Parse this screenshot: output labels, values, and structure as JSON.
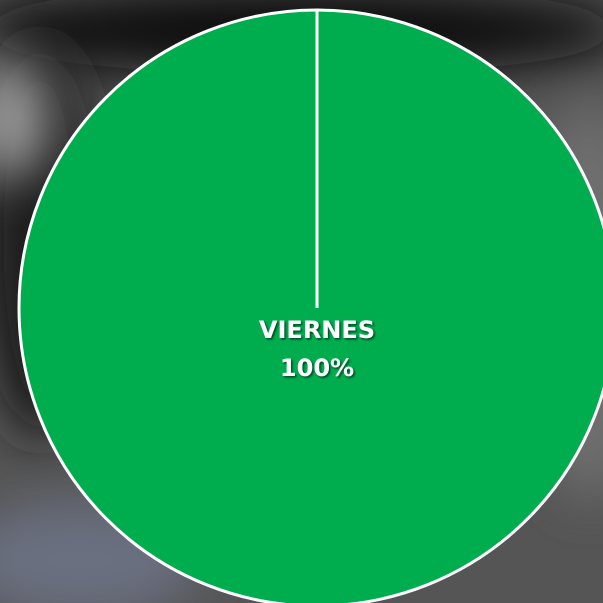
{
  "chart_data": {
    "type": "pie",
    "categories": [
      "VIERNES"
    ],
    "values": [
      100
    ],
    "value_labels": [
      "100%"
    ],
    "colors": [
      "#00ad4e"
    ]
  }
}
